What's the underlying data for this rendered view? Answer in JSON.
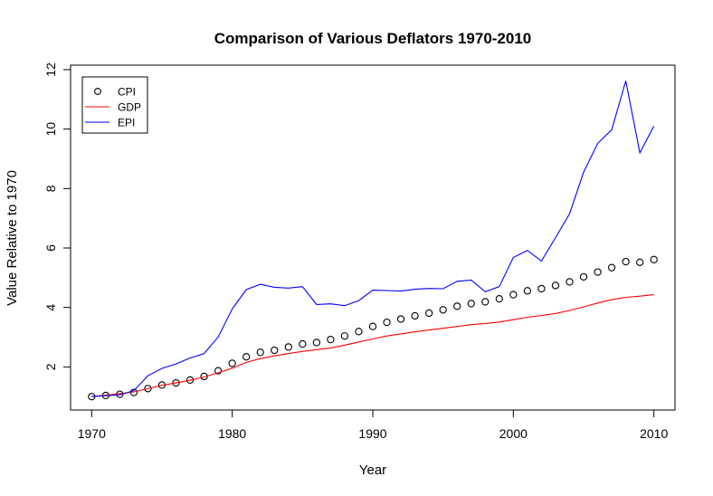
{
  "chart_data": {
    "type": "line",
    "title": "Comparison of Various Deflators 1970-2010",
    "xlabel": "Year",
    "ylabel": "Value Relative to 1970",
    "xlim": [
      1968.5,
      2011.5
    ],
    "ylim": [
      0.55,
      12.15
    ],
    "x_ticks": [
      1970,
      1980,
      1990,
      2000,
      2010
    ],
    "y_ticks": [
      2,
      4,
      6,
      8,
      10,
      12
    ],
    "grid": false,
    "legend_position": "top-left",
    "x": [
      1970,
      1971,
      1972,
      1973,
      1974,
      1975,
      1976,
      1977,
      1978,
      1979,
      1980,
      1981,
      1982,
      1983,
      1984,
      1985,
      1986,
      1987,
      1988,
      1989,
      1990,
      1991,
      1992,
      1993,
      1994,
      1995,
      1996,
      1997,
      1998,
      1999,
      2000,
      2001,
      2002,
      2003,
      2004,
      2005,
      2006,
      2007,
      2008,
      2009,
      2010
    ],
    "series": [
      {
        "name": "CPI",
        "style": "points",
        "color": "#000000",
        "values": [
          1.0,
          1.04,
          1.08,
          1.14,
          1.27,
          1.39,
          1.46,
          1.56,
          1.68,
          1.87,
          2.12,
          2.34,
          2.49,
          2.56,
          2.67,
          2.77,
          2.82,
          2.92,
          3.04,
          3.19,
          3.36,
          3.5,
          3.61,
          3.72,
          3.81,
          3.92,
          4.04,
          4.13,
          4.19,
          4.29,
          4.43,
          4.56,
          4.63,
          4.74,
          4.86,
          5.03,
          5.19,
          5.34,
          5.54,
          5.52,
          5.61
        ]
      },
      {
        "name": "GDP",
        "style": "line",
        "color": "#ff0000",
        "values": [
          1.0,
          1.05,
          1.1,
          1.16,
          1.27,
          1.38,
          1.46,
          1.55,
          1.66,
          1.8,
          1.96,
          2.15,
          2.28,
          2.37,
          2.45,
          2.52,
          2.58,
          2.64,
          2.73,
          2.84,
          2.94,
          3.04,
          3.11,
          3.18,
          3.24,
          3.3,
          3.36,
          3.42,
          3.46,
          3.51,
          3.59,
          3.67,
          3.73,
          3.8,
          3.9,
          4.02,
          4.15,
          4.26,
          4.34,
          4.38,
          4.43
        ]
      },
      {
        "name": "EPI",
        "style": "line",
        "color": "#0000ff",
        "values": [
          1.0,
          1.03,
          1.06,
          1.2,
          1.7,
          1.95,
          2.1,
          2.3,
          2.45,
          3.0,
          3.95,
          4.6,
          4.78,
          4.68,
          4.65,
          4.7,
          4.1,
          4.12,
          4.06,
          4.23,
          4.58,
          4.57,
          4.55,
          4.61,
          4.64,
          4.63,
          4.88,
          4.92,
          4.53,
          4.7,
          5.68,
          5.92,
          5.56,
          6.35,
          7.15,
          8.55,
          9.52,
          9.98,
          11.62,
          9.2,
          10.1
        ]
      }
    ]
  }
}
